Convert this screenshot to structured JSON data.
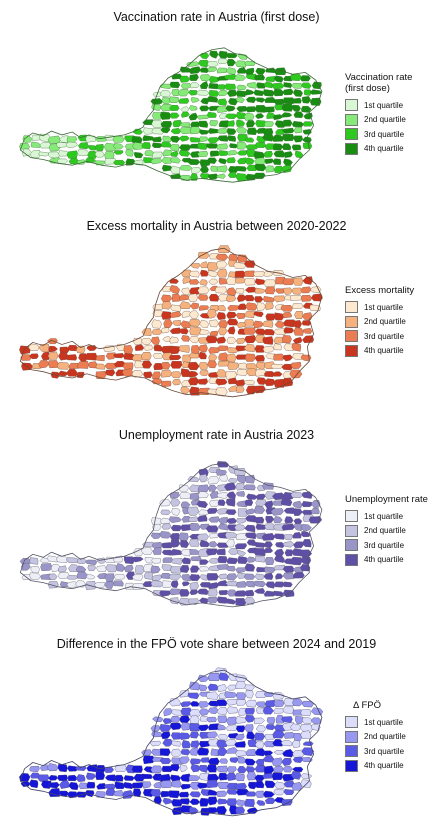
{
  "maps": [
    {
      "title": "Vaccination rate in Austria (first dose)",
      "legend_title": "Vaccination rate (first dose)",
      "legend_items": [
        "1st quartile",
        "2nd quartile",
        "3rd quartile",
        "4th quartile"
      ],
      "colors": [
        "#d9f7d4",
        "#86ea78",
        "#2ec91f",
        "#198c12"
      ],
      "border_color": "#3b6b36",
      "pattern": "east-dark"
    },
    {
      "title": "Excess mortality in Austria between 2020-2022",
      "legend_title": "Excess mortality",
      "legend_items": [
        "1st quartile",
        "2nd quartile",
        "3rd quartile",
        "4th quartile"
      ],
      "colors": [
        "#fde9d0",
        "#f6b27e",
        "#ec7c52",
        "#c9351e"
      ],
      "border_color": "#6b4a3a",
      "pattern": "mixed"
    },
    {
      "title": "Unemployment rate in Austria 2023",
      "legend_title": "Unemployment rate",
      "legend_items": [
        "1st quartile",
        "2nd quartile",
        "3rd quartile",
        "4th quartile"
      ],
      "colors": [
        "#eeeef6",
        "#c4c3e0",
        "#9a95c9",
        "#5f4fa6"
      ],
      "border_color": "#555566",
      "pattern": "east-south-dark"
    },
    {
      "title": "Difference in the FPÖ vote share between 2024 and 2019",
      "legend_title": "Δ FPÖ",
      "legend_items": [
        "1st quartile",
        "2nd quartile",
        "3rd quartile",
        "4th quartile"
      ],
      "colors": [
        "#dcdcfb",
        "#9898f0",
        "#5a5ae6",
        "#1616d8"
      ],
      "border_color": "#444466",
      "pattern": "west-south-dark"
    }
  ]
}
